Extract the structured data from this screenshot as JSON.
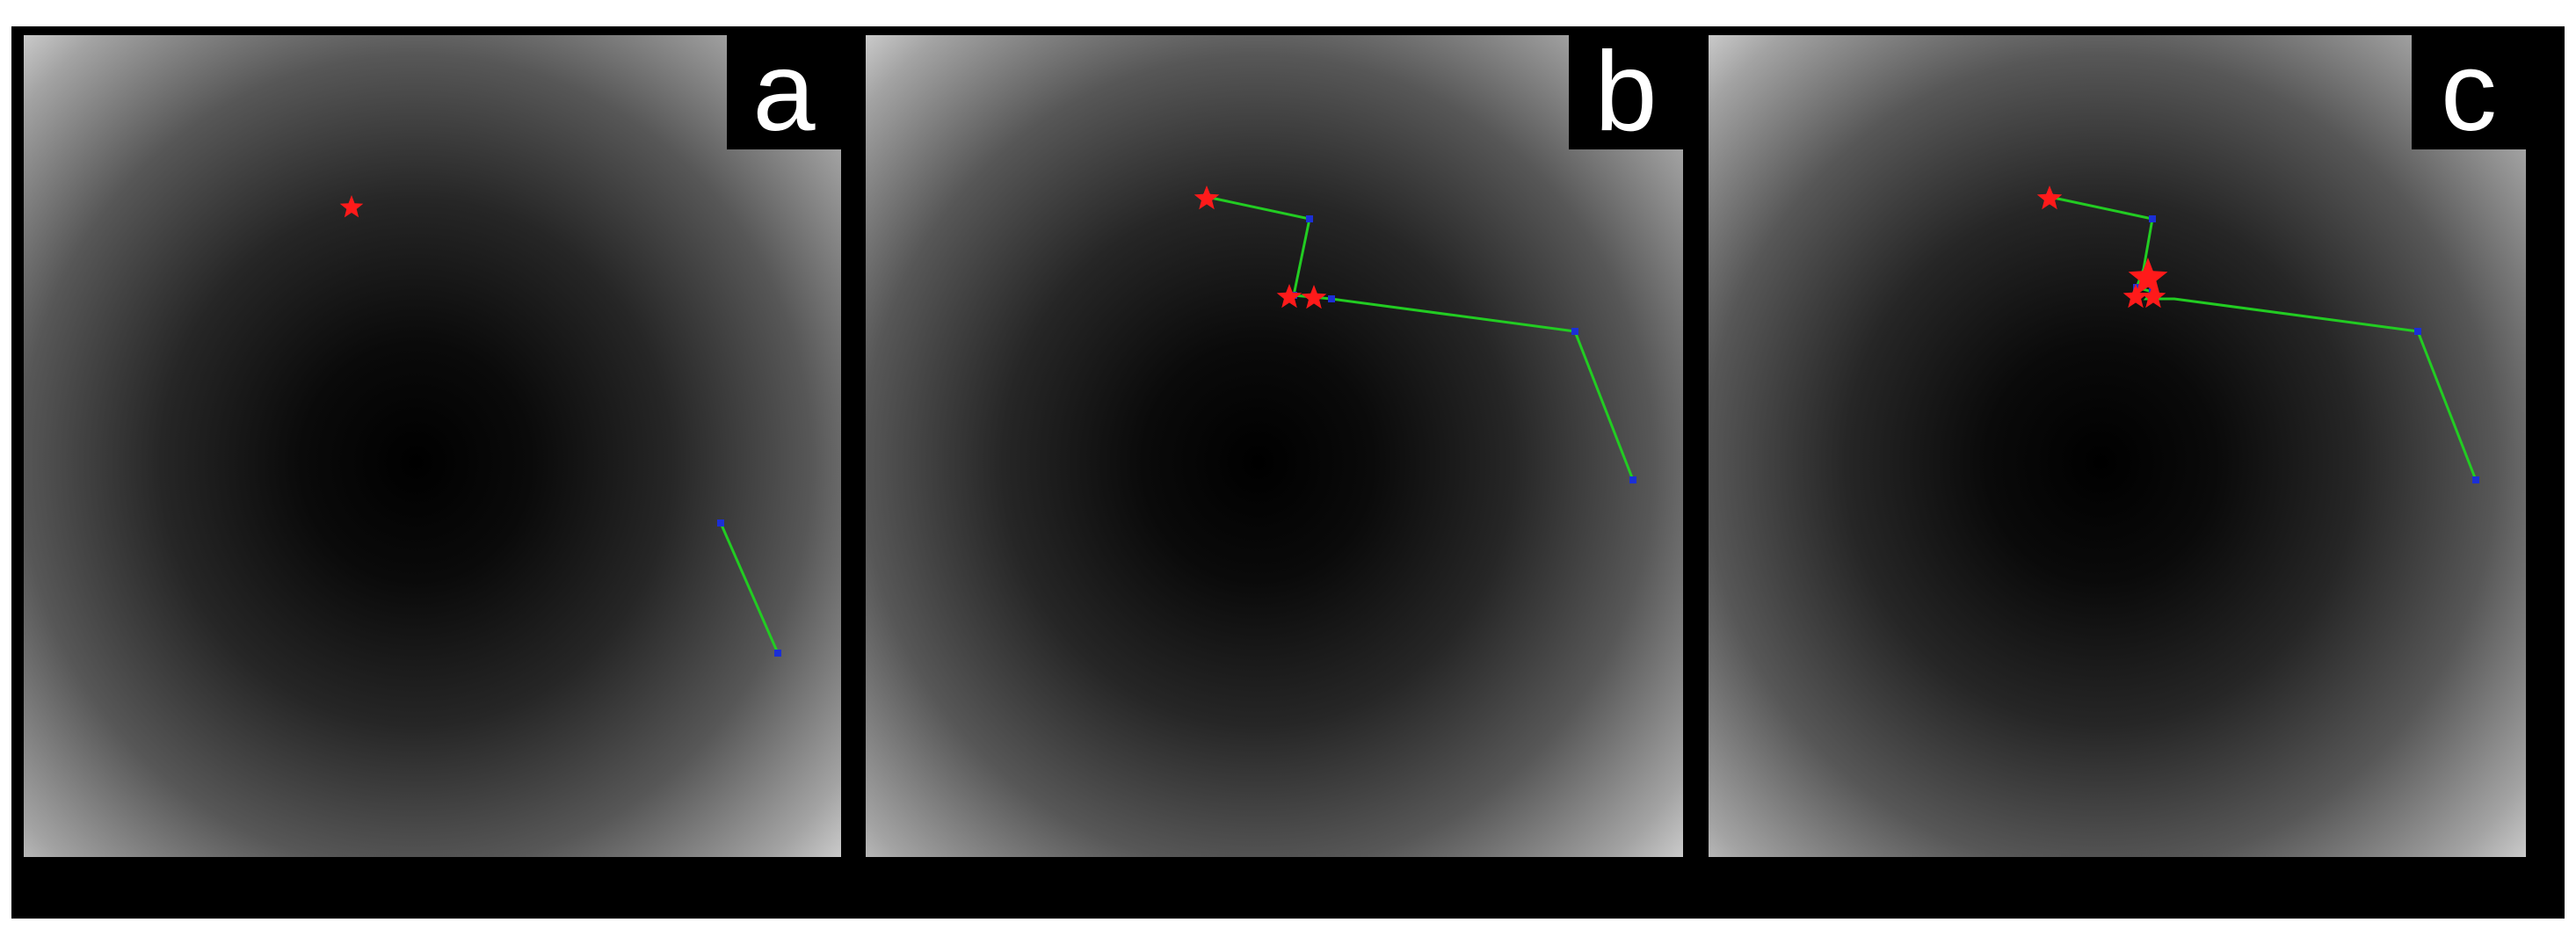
{
  "figure": {
    "panels": [
      {
        "id": "a",
        "label": "a"
      },
      {
        "id": "b",
        "label": "b"
      },
      {
        "id": "c",
        "label": "c"
      }
    ],
    "colors": {
      "path_line": "#22cc22",
      "path_node": "#1b2fd6",
      "star": "#ff1a1a",
      "background_center": "#000000",
      "background_edge": "#ffffff"
    },
    "icons": {
      "marker": "star-icon",
      "node": "square-node-icon"
    }
  }
}
